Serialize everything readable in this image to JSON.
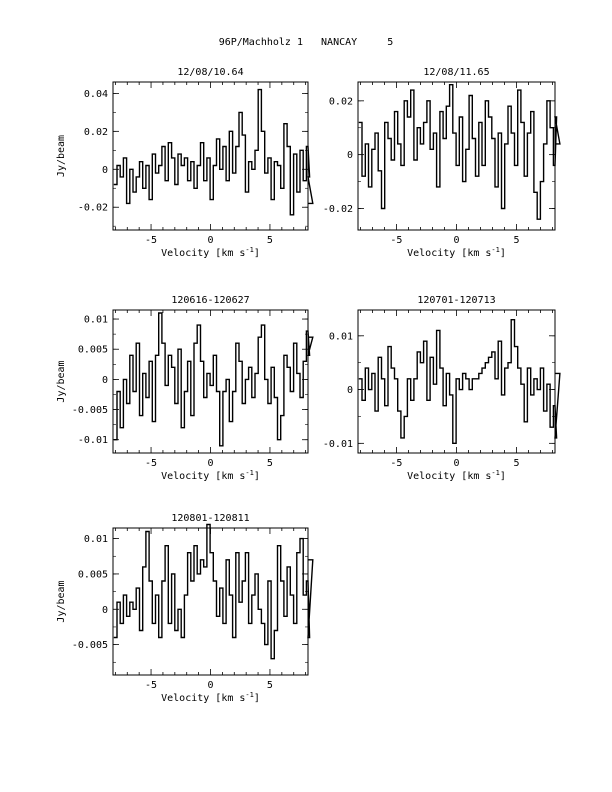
{
  "page_title": "96P/Machholz 1   NANCAY     5",
  "chart_data": [
    {
      "type": "line",
      "title": "12/08/10.64",
      "xlabel": "Velocity [km s",
      "xlabel_sup": "-1",
      "xlabel_tail": "]",
      "ylabel": "Jy/beam",
      "xlim": [
        -8.2,
        8.2
      ],
      "ylim": [
        -0.032,
        0.046
      ],
      "xticks": [
        -5,
        0,
        5
      ],
      "xtick_labels": [
        "-5",
        "0",
        "5"
      ],
      "yticks": [
        -0.02,
        0,
        0.02,
        0.04
      ],
      "ytick_labels": [
        "-0.02",
        "0",
        "0.02",
        "0.04"
      ],
      "x_start": -8.0,
      "x_step": 0.27,
      "series": [
        {
          "values": [
            -0.008,
            0.002,
            -0.004,
            0.006,
            -0.018,
            0.0,
            -0.012,
            -0.004,
            0.004,
            -0.01,
            0.002,
            -0.016,
            0.008,
            -0.002,
            0.002,
            0.012,
            -0.006,
            0.014,
            0.006,
            -0.008,
            0.008,
            0.002,
            0.006,
            -0.006,
            0.004,
            -0.01,
            0.002,
            0.014,
            -0.006,
            0.006,
            -0.016,
            0.002,
            0.016,
            0.0,
            0.012,
            -0.006,
            0.02,
            -0.002,
            0.012,
            0.03,
            0.018,
            -0.012,
            0.004,
            0.0,
            0.01,
            0.042,
            0.02,
            -0.002,
            0.006,
            -0.016,
            0.004,
            0.002,
            -0.01,
            0.024,
            0.012,
            -0.024,
            0.008,
            -0.012,
            0.01,
            -0.006,
            0.012,
            -0.004,
            -0.018
          ]
        }
      ]
    },
    {
      "type": "line",
      "title": "12/08/11.65",
      "xlabel": "Velocity [km s",
      "xlabel_sup": "-1",
      "xlabel_tail": "]",
      "ylabel": "",
      "xlim": [
        -8.2,
        8.2
      ],
      "ylim": [
        -0.028,
        0.027
      ],
      "xticks": [
        -5,
        0,
        5
      ],
      "xtick_labels": [
        "-5",
        "0",
        "5"
      ],
      "yticks": [
        -0.02,
        0,
        0.02
      ],
      "ytick_labels": [
        "-0.02",
        "0",
        "0.02"
      ],
      "x_start": -8.0,
      "x_step": 0.27,
      "series": [
        {
          "values": [
            0.012,
            -0.008,
            0.004,
            -0.012,
            0.002,
            0.008,
            -0.006,
            -0.02,
            0.012,
            0.006,
            -0.002,
            0.016,
            0.004,
            -0.004,
            0.02,
            0.014,
            0.024,
            -0.002,
            0.01,
            0.004,
            0.012,
            0.02,
            0.002,
            0.008,
            -0.012,
            0.016,
            0.006,
            0.018,
            0.026,
            0.008,
            -0.004,
            0.014,
            -0.01,
            0.002,
            0.022,
            0.006,
            -0.008,
            0.012,
            -0.004,
            0.02,
            0.014,
            0.006,
            -0.012,
            0.008,
            -0.02,
            0.004,
            0.018,
            0.008,
            -0.004,
            0.024,
            0.012,
            -0.008,
            0.008,
            0.016,
            -0.014,
            -0.024,
            -0.01,
            0.004,
            0.02,
            0.01,
            -0.004,
            0.014,
            0.004
          ]
        }
      ]
    },
    {
      "type": "line",
      "title": "120616-120627",
      "xlabel": "Velocity [km s",
      "xlabel_sup": "-1",
      "xlabel_tail": "]",
      "ylabel": "Jy/beam",
      "xlim": [
        -8.2,
        8.2
      ],
      "ylim": [
        -0.0122,
        0.0115
      ],
      "xticks": [
        -5,
        0,
        5
      ],
      "xtick_labels": [
        "-5",
        "0",
        "5"
      ],
      "yticks": [
        -0.01,
        -0.005,
        0,
        0.005,
        0.01
      ],
      "ytick_labels": [
        "-0.01",
        "-0.005",
        "0",
        "0.005",
        "0.01"
      ],
      "x_start": -8.0,
      "x_step": 0.27,
      "series": [
        {
          "values": [
            -0.01,
            -0.002,
            -0.008,
            0.0,
            -0.004,
            0.004,
            -0.002,
            0.006,
            -0.006,
            0.001,
            -0.003,
            0.003,
            -0.007,
            0.004,
            0.011,
            0.006,
            -0.001,
            0.004,
            0.002,
            -0.004,
            0.005,
            -0.008,
            -0.002,
            0.003,
            -0.006,
            0.006,
            0.009,
            0.003,
            -0.003,
            0.001,
            -0.001,
            0.004,
            -0.002,
            -0.011,
            -0.002,
            0.0,
            -0.007,
            -0.002,
            0.006,
            0.003,
            -0.004,
            0.0,
            0.002,
            -0.003,
            0.001,
            0.007,
            0.009,
            0.0,
            -0.004,
            0.002,
            -0.003,
            -0.01,
            -0.006,
            0.004,
            0.002,
            -0.002,
            0.006,
            0.001,
            -0.003,
            0.003,
            0.008,
            0.004,
            0.007
          ]
        }
      ]
    },
    {
      "type": "line",
      "title": "120701-120713",
      "xlabel": "Velocity [km s",
      "xlabel_sup": "-1",
      "xlabel_tail": "]",
      "ylabel": "",
      "xlim": [
        -8.2,
        8.2
      ],
      "ylim": [
        -0.0118,
        0.0148
      ],
      "xticks": [
        -5,
        0,
        5
      ],
      "xtick_labels": [
        "-5",
        "0",
        "5"
      ],
      "yticks": [
        -0.01,
        0,
        0.01
      ],
      "ytick_labels": [
        "-0.01",
        "0",
        "0.01"
      ],
      "x_start": -8.0,
      "x_step": 0.27,
      "series": [
        {
          "values": [
            0.002,
            -0.002,
            0.004,
            0.0,
            0.003,
            -0.004,
            0.006,
            0.002,
            -0.003,
            0.008,
            0.004,
            0.002,
            -0.004,
            -0.009,
            -0.005,
            0.002,
            -0.002,
            0.002,
            0.007,
            0.005,
            0.009,
            -0.002,
            0.006,
            0.001,
            0.011,
            0.004,
            -0.003,
            0.003,
            -0.001,
            -0.01,
            0.002,
            0.0,
            0.003,
            0.002,
            0.0,
            0.002,
            0.002,
            0.003,
            0.004,
            0.005,
            0.006,
            0.007,
            0.002,
            0.009,
            -0.001,
            0.004,
            0.005,
            0.013,
            0.008,
            0.004,
            0.001,
            -0.006,
            0.004,
            -0.001,
            0.002,
            0.0,
            0.004,
            -0.004,
            0.001,
            -0.007,
            -0.003,
            -0.009,
            0.003
          ]
        }
      ]
    },
    {
      "type": "line",
      "title": "120801-120811",
      "xlabel": "Velocity [km s",
      "xlabel_sup": "-1",
      "xlabel_tail": "]",
      "ylabel": "Jy/beam",
      "xlim": [
        -8.2,
        8.2
      ],
      "ylim": [
        -0.0093,
        0.0115
      ],
      "xticks": [
        -5,
        0,
        5
      ],
      "xtick_labels": [
        "-5",
        "0",
        "5"
      ],
      "yticks": [
        -0.005,
        0,
        0.005,
        0.01
      ],
      "ytick_labels": [
        "-0.005",
        "0",
        "0.005",
        "0.01"
      ],
      "x_start": -8.0,
      "x_step": 0.27,
      "series": [
        {
          "values": [
            -0.004,
            0.001,
            -0.002,
            0.002,
            -0.001,
            0.001,
            0.0,
            0.003,
            -0.003,
            0.006,
            0.011,
            0.004,
            -0.002,
            0.002,
            -0.004,
            0.004,
            0.009,
            -0.002,
            0.005,
            -0.003,
            0.0,
            -0.004,
            0.002,
            0.008,
            0.004,
            0.009,
            0.005,
            0.007,
            0.006,
            0.012,
            0.008,
            0.004,
            -0.001,
            0.003,
            -0.002,
            0.007,
            0.002,
            -0.004,
            0.008,
            0.001,
            0.004,
            0.008,
            -0.002,
            0.002,
            0.005,
            0.0,
            -0.002,
            -0.005,
            0.004,
            -0.007,
            -0.003,
            0.009,
            0.004,
            -0.001,
            0.006,
            0.002,
            -0.002,
            0.008,
            0.01,
            0.002,
            0.004,
            -0.004,
            0.007
          ]
        }
      ]
    }
  ]
}
